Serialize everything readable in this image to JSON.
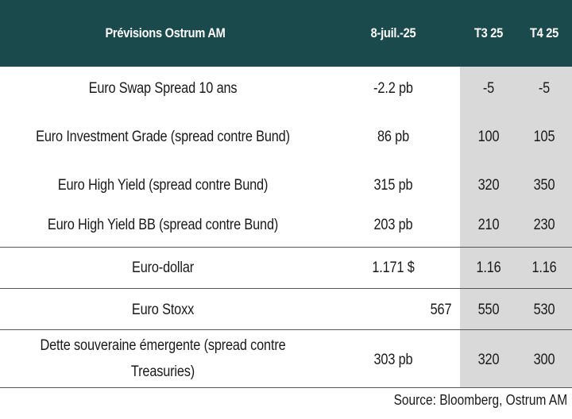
{
  "header": {
    "title": "Prévisions Ostrum AM",
    "date": "8-juil.-25",
    "q3": "T3 25",
    "q4": "T4 25"
  },
  "rows": [
    {
      "label": "Euro Swap Spread 10 ans",
      "current": "-2.2 pb",
      "q3": "-5",
      "q4": "-5"
    },
    {
      "label": "Euro Investment Grade (spread contre Bund)",
      "current": "86 pb",
      "q3": "100",
      "q4": "105"
    },
    {
      "label": "Euro High Yield (spread contre Bund)",
      "current": "315 pb",
      "q3": "320",
      "q4": "350"
    },
    {
      "label": "Euro High Yield BB (spread contre Bund)",
      "current": "203 pb",
      "q3": "210",
      "q4": "230"
    },
    {
      "label": "Euro-dollar",
      "current": "1.171 $",
      "q3": "1.16",
      "q4": "1.16"
    },
    {
      "label": "Euro Stoxx",
      "current": "567",
      "q3": "550",
      "q4": "530"
    },
    {
      "label_line1": "Dette souveraine émergente (spread contre",
      "label_line2": "Treasuries)",
      "current": "303 pb",
      "q3": "320",
      "q4": "300"
    }
  ],
  "source": "Source: Bloomberg, Ostrum AM",
  "colors": {
    "header_bg": "#1b4a4c",
    "forecast_bg": "#d9d9d9"
  }
}
